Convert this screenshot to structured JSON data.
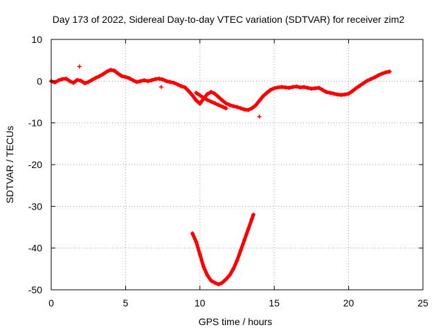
{
  "chart_data": {
    "type": "scatter",
    "title": "Day 173 of 2022, Sidereal Day-to-day VTEC variation (SDTVAR) for receiver zim2",
    "xlabel": "GPS time / hours",
    "ylabel": "SDTVAR / TECUs",
    "xlim": [
      0,
      25
    ],
    "ylim": [
      -50,
      10
    ],
    "xticks": [
      0,
      5,
      10,
      15,
      20,
      25
    ],
    "yticks": [
      10,
      0,
      -10,
      -20,
      -30,
      -40,
      -50
    ],
    "grid": true,
    "marker_color": "#ff0000",
    "series": [
      {
        "name": "main trace",
        "x": [
          0.0,
          0.25,
          0.5,
          0.75,
          1.0,
          1.25,
          1.5,
          1.75,
          2.0,
          2.25,
          2.5,
          2.75,
          3.0,
          3.25,
          3.5,
          3.75,
          4.0,
          4.25,
          4.5,
          4.75,
          5.0,
          5.25,
          5.5,
          5.75,
          6.0,
          6.25,
          6.5,
          6.75,
          7.0,
          7.25,
          7.5,
          7.75,
          8.0,
          8.25,
          8.5,
          8.75,
          9.0,
          9.25,
          9.5,
          9.75,
          10.0,
          10.25,
          10.5,
          10.75,
          11.0,
          11.25,
          11.5,
          11.75,
          12.0,
          12.25,
          12.5,
          12.75,
          13.0,
          13.25,
          13.5,
          13.75,
          14.0,
          14.25,
          14.5,
          14.75,
          15.0,
          15.25,
          15.5,
          15.75,
          16.0,
          16.25,
          16.5,
          16.75,
          17.0,
          17.25,
          17.5,
          17.75,
          18.0,
          18.25,
          18.5,
          18.75,
          19.0,
          19.25,
          19.5,
          19.75,
          20.0,
          20.25,
          20.5,
          20.75,
          21.0,
          21.25,
          21.5,
          21.75,
          22.0,
          22.25,
          22.5,
          22.75
        ],
        "y": [
          0.0,
          -0.3,
          0.2,
          0.5,
          0.6,
          0.0,
          -0.4,
          0.3,
          0.1,
          -0.5,
          -0.2,
          0.3,
          0.8,
          1.2,
          1.7,
          2.3,
          2.7,
          2.5,
          1.8,
          1.2,
          1.0,
          0.7,
          0.2,
          -0.2,
          0.0,
          0.2,
          0.0,
          0.2,
          0.5,
          0.6,
          0.4,
          0.0,
          -0.2,
          -0.4,
          -0.8,
          -1.2,
          -1.5,
          -2.4,
          -3.4,
          -4.6,
          -5.4,
          -4.2,
          -3.1,
          -2.6,
          -3.0,
          -3.8,
          -4.6,
          -5.3,
          -5.7,
          -6.0,
          -6.2,
          -6.5,
          -6.8,
          -6.9,
          -6.5,
          -5.8,
          -4.7,
          -3.6,
          -2.8,
          -2.1,
          -1.7,
          -1.5,
          -1.4,
          -1.5,
          -1.6,
          -1.4,
          -1.3,
          -1.5,
          -1.4,
          -1.6,
          -1.8,
          -1.7,
          -1.6,
          -2.1,
          -2.6,
          -2.8,
          -3.0,
          -3.2,
          -3.3,
          -3.2,
          -3.0,
          -2.4,
          -1.7,
          -1.1,
          -0.5,
          0.1,
          0.5,
          0.9,
          1.4,
          1.8,
          2.1,
          2.3
        ]
      },
      {
        "name": "secondary branch",
        "x": [
          9.75,
          10.0,
          10.25,
          10.5,
          10.75,
          11.0,
          11.25,
          11.5,
          11.75
        ],
        "y": [
          -2.8,
          -3.4,
          -4.0,
          -4.5,
          -4.9,
          -5.3,
          -5.7,
          -6.1,
          -6.5
        ]
      },
      {
        "name": "dip",
        "x": [
          9.5,
          9.75,
          10.0,
          10.25,
          10.5,
          10.75,
          11.0,
          11.25,
          11.5,
          11.75,
          12.0,
          12.25,
          12.5,
          12.75,
          13.0,
          13.25,
          13.5,
          13.6
        ],
        "y": [
          -36.5,
          -38.5,
          -41.5,
          -44.5,
          -46.5,
          -47.8,
          -48.3,
          -48.7,
          -48.3,
          -47.5,
          -46.5,
          -45.0,
          -43.0,
          -40.5,
          -38.0,
          -35.5,
          -33.0,
          -32.0
        ]
      }
    ],
    "outliers": [
      {
        "x": 1.9,
        "y": 3.5
      },
      {
        "x": 7.4,
        "y": -1.4
      },
      {
        "x": 14.0,
        "y": -8.5
      }
    ]
  }
}
